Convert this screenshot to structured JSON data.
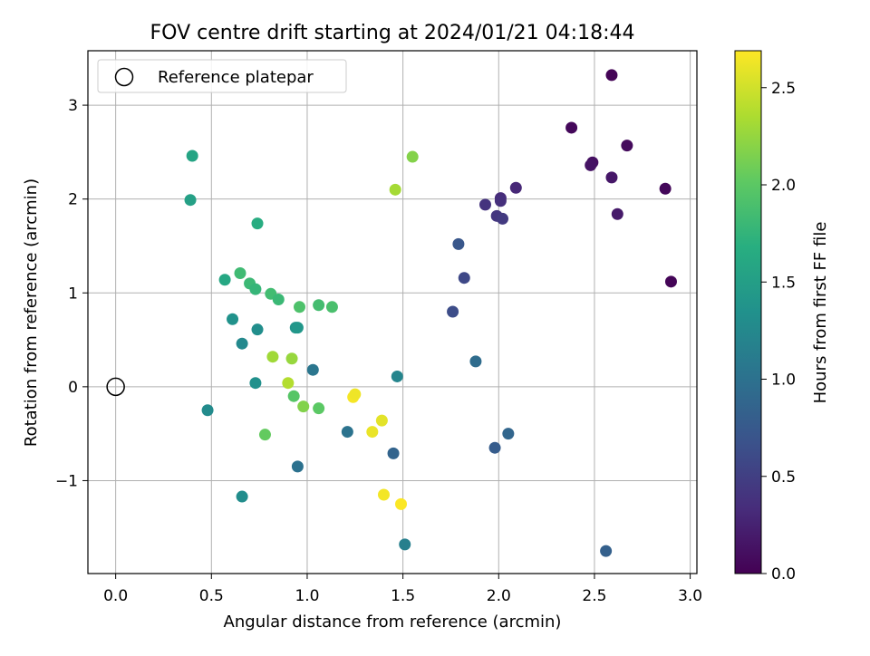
{
  "chart_data": {
    "type": "scatter",
    "title": "FOV centre drift starting at 2024/01/21 04:18:44",
    "xlabel": "Angular distance from reference (arcmin)",
    "ylabel": "Rotation from reference (arcmin)",
    "xlim": [
      -0.145,
      3.035
    ],
    "ylim": [
      -1.99,
      3.58
    ],
    "xticks": [
      0.0,
      0.5,
      1.0,
      1.5,
      2.0,
      2.5,
      3.0
    ],
    "xtick_labels": [
      "0.0",
      "0.5",
      "1.0",
      "1.5",
      "2.0",
      "2.5",
      "3.0"
    ],
    "yticks": [
      -1,
      0,
      1,
      2,
      3
    ],
    "ytick_labels": [
      "−1",
      "0",
      "1",
      "2",
      "3"
    ],
    "grid": true,
    "legend": {
      "position": "top-left",
      "entries": [
        "Reference platepar"
      ]
    },
    "reference_point": {
      "x": 0.0,
      "y": 0.0,
      "marker": "open-circle"
    },
    "colorbar": {
      "label": "Hours from first FF file",
      "colormap": "viridis",
      "range": [
        0.0,
        2.69
      ],
      "ticks": [
        0.0,
        0.5,
        1.0,
        1.5,
        2.0,
        2.5
      ],
      "tick_labels": [
        "0.0",
        "0.5",
        "1.0",
        "1.5",
        "2.0",
        "2.5"
      ]
    },
    "points": [
      {
        "x": 2.59,
        "y": 3.32,
        "c": 0.02
      },
      {
        "x": 2.38,
        "y": 2.76,
        "c": 0.05
      },
      {
        "x": 2.67,
        "y": 2.57,
        "c": 0.08
      },
      {
        "x": 2.49,
        "y": 2.39,
        "c": 0.11
      },
      {
        "x": 2.48,
        "y": 2.36,
        "c": 0.14
      },
      {
        "x": 2.59,
        "y": 2.23,
        "c": 0.17
      },
      {
        "x": 2.87,
        "y": 2.11,
        "c": 0.05
      },
      {
        "x": 2.62,
        "y": 1.84,
        "c": 0.19
      },
      {
        "x": 2.9,
        "y": 1.12,
        "c": 0.03
      },
      {
        "x": 2.09,
        "y": 2.12,
        "c": 0.3
      },
      {
        "x": 2.01,
        "y": 2.01,
        "c": 0.33
      },
      {
        "x": 2.01,
        "y": 1.98,
        "c": 0.36
      },
      {
        "x": 1.93,
        "y": 1.94,
        "c": 0.39
      },
      {
        "x": 1.99,
        "y": 1.82,
        "c": 0.42
      },
      {
        "x": 2.02,
        "y": 1.79,
        "c": 0.45
      },
      {
        "x": 1.79,
        "y": 1.52,
        "c": 0.72
      },
      {
        "x": 1.82,
        "y": 1.16,
        "c": 0.58
      },
      {
        "x": 1.76,
        "y": 0.8,
        "c": 0.63
      },
      {
        "x": 1.88,
        "y": 0.27,
        "c": 0.95
      },
      {
        "x": 2.05,
        "y": -0.5,
        "c": 0.88
      },
      {
        "x": 1.98,
        "y": -0.65,
        "c": 0.78
      },
      {
        "x": 2.56,
        "y": -1.75,
        "c": 0.82
      },
      {
        "x": 1.45,
        "y": -0.71,
        "c": 0.86
      },
      {
        "x": 1.51,
        "y": -1.68,
        "c": 1.15
      },
      {
        "x": 1.47,
        "y": 0.11,
        "c": 1.22
      },
      {
        "x": 1.21,
        "y": -0.48,
        "c": 1.02
      },
      {
        "x": 1.03,
        "y": 0.18,
        "c": 1.05
      },
      {
        "x": 0.95,
        "y": -0.85,
        "c": 1.0
      },
      {
        "x": 0.48,
        "y": -0.25,
        "c": 1.28
      },
      {
        "x": 0.66,
        "y": -1.17,
        "c": 1.3
      },
      {
        "x": 0.73,
        "y": 0.04,
        "c": 1.33
      },
      {
        "x": 0.66,
        "y": 0.46,
        "c": 1.26
      },
      {
        "x": 0.74,
        "y": 0.61,
        "c": 1.31
      },
      {
        "x": 0.61,
        "y": 0.72,
        "c": 1.36
      },
      {
        "x": 0.94,
        "y": 0.63,
        "c": 1.38
      },
      {
        "x": 0.95,
        "y": 0.63,
        "c": 1.41
      },
      {
        "x": 0.39,
        "y": 1.99,
        "c": 1.52
      },
      {
        "x": 0.4,
        "y": 2.46,
        "c": 1.56
      },
      {
        "x": 0.74,
        "y": 1.74,
        "c": 1.66
      },
      {
        "x": 0.57,
        "y": 1.14,
        "c": 1.6
      },
      {
        "x": 0.65,
        "y": 1.21,
        "c": 1.83
      },
      {
        "x": 0.7,
        "y": 1.1,
        "c": 1.81
      },
      {
        "x": 0.73,
        "y": 1.04,
        "c": 1.77
      },
      {
        "x": 0.81,
        "y": 0.99,
        "c": 1.85
      },
      {
        "x": 0.85,
        "y": 0.93,
        "c": 1.8
      },
      {
        "x": 1.06,
        "y": 0.87,
        "c": 1.86
      },
      {
        "x": 1.13,
        "y": 0.85,
        "c": 1.89
      },
      {
        "x": 0.96,
        "y": 0.85,
        "c": 1.92
      },
      {
        "x": 0.93,
        "y": -0.1,
        "c": 1.97
      },
      {
        "x": 1.06,
        "y": -0.23,
        "c": 2.0
      },
      {
        "x": 0.78,
        "y": -0.51,
        "c": 2.04
      },
      {
        "x": 0.98,
        "y": -0.21,
        "c": 2.17
      },
      {
        "x": 1.55,
        "y": 2.45,
        "c": 2.18
      },
      {
        "x": 1.46,
        "y": 2.1,
        "c": 2.32
      },
      {
        "x": 0.82,
        "y": 0.32,
        "c": 2.3
      },
      {
        "x": 0.92,
        "y": 0.3,
        "c": 2.26
      },
      {
        "x": 0.9,
        "y": 0.04,
        "c": 2.38
      },
      {
        "x": 1.24,
        "y": -0.11,
        "c": 2.66
      },
      {
        "x": 1.25,
        "y": -0.08,
        "c": 2.63
      },
      {
        "x": 1.39,
        "y": -0.36,
        "c": 2.58
      },
      {
        "x": 1.34,
        "y": -0.48,
        "c": 2.61
      },
      {
        "x": 1.4,
        "y": -1.15,
        "c": 2.65
      },
      {
        "x": 1.49,
        "y": -1.25,
        "c": 2.68
      }
    ]
  }
}
